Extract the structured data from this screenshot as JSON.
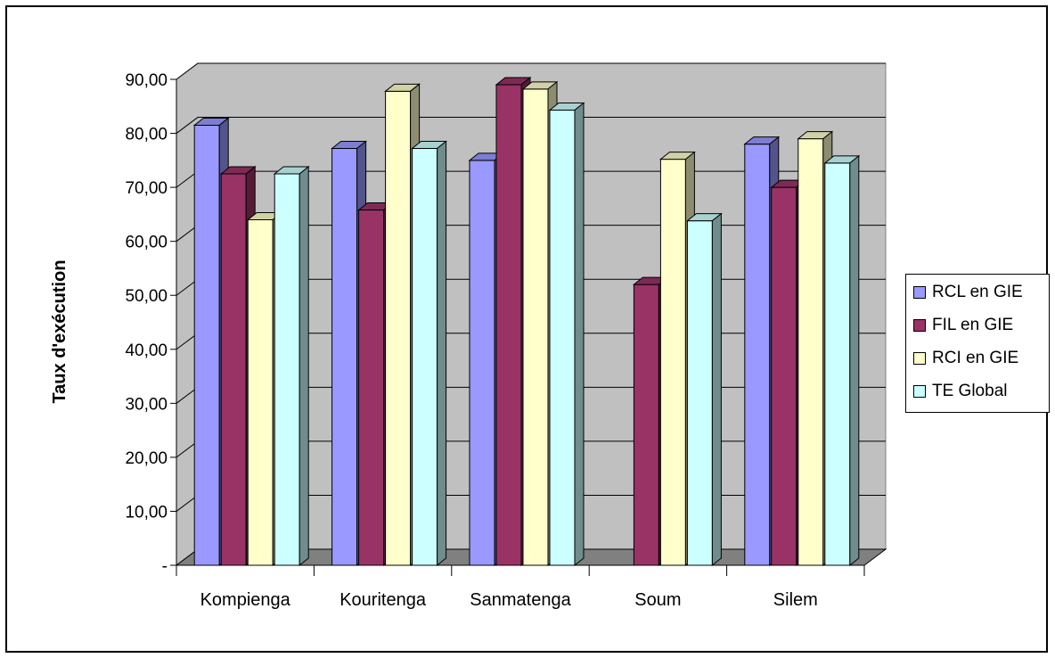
{
  "chart_data": {
    "type": "bar",
    "title": "",
    "xlabel": "",
    "ylabel": "Taux d'exécution",
    "ylim": [
      0,
      90
    ],
    "yticks": [
      "-",
      "10,00",
      "20,00",
      "30,00",
      "40,00",
      "50,00",
      "60,00",
      "70,00",
      "80,00",
      "90,00"
    ],
    "categories": [
      "Kompienga",
      "Kouritenga",
      "Sanmatenga",
      "Soum",
      "Silem"
    ],
    "series": [
      {
        "name": "RCL en GIE",
        "color": "#9999ff",
        "values": [
          81.5,
          77.2,
          75.0,
          null,
          78.0
        ]
      },
      {
        "name": "FIL en GIE",
        "color": "#993366",
        "values": [
          72.5,
          65.8,
          89.0,
          52.0,
          70.0
        ]
      },
      {
        "name": "RCI en GIE",
        "color": "#ffffcc",
        "values": [
          64.0,
          87.8,
          88.2,
          75.2,
          79.0
        ]
      },
      {
        "name": "TE  Global",
        "color": "#ccffff",
        "values": [
          72.5,
          77.2,
          84.3,
          63.8,
          74.5
        ]
      }
    ],
    "grid": true,
    "legend": "right",
    "wall_color": "#c0c0c0",
    "floor_color": "#808080"
  }
}
